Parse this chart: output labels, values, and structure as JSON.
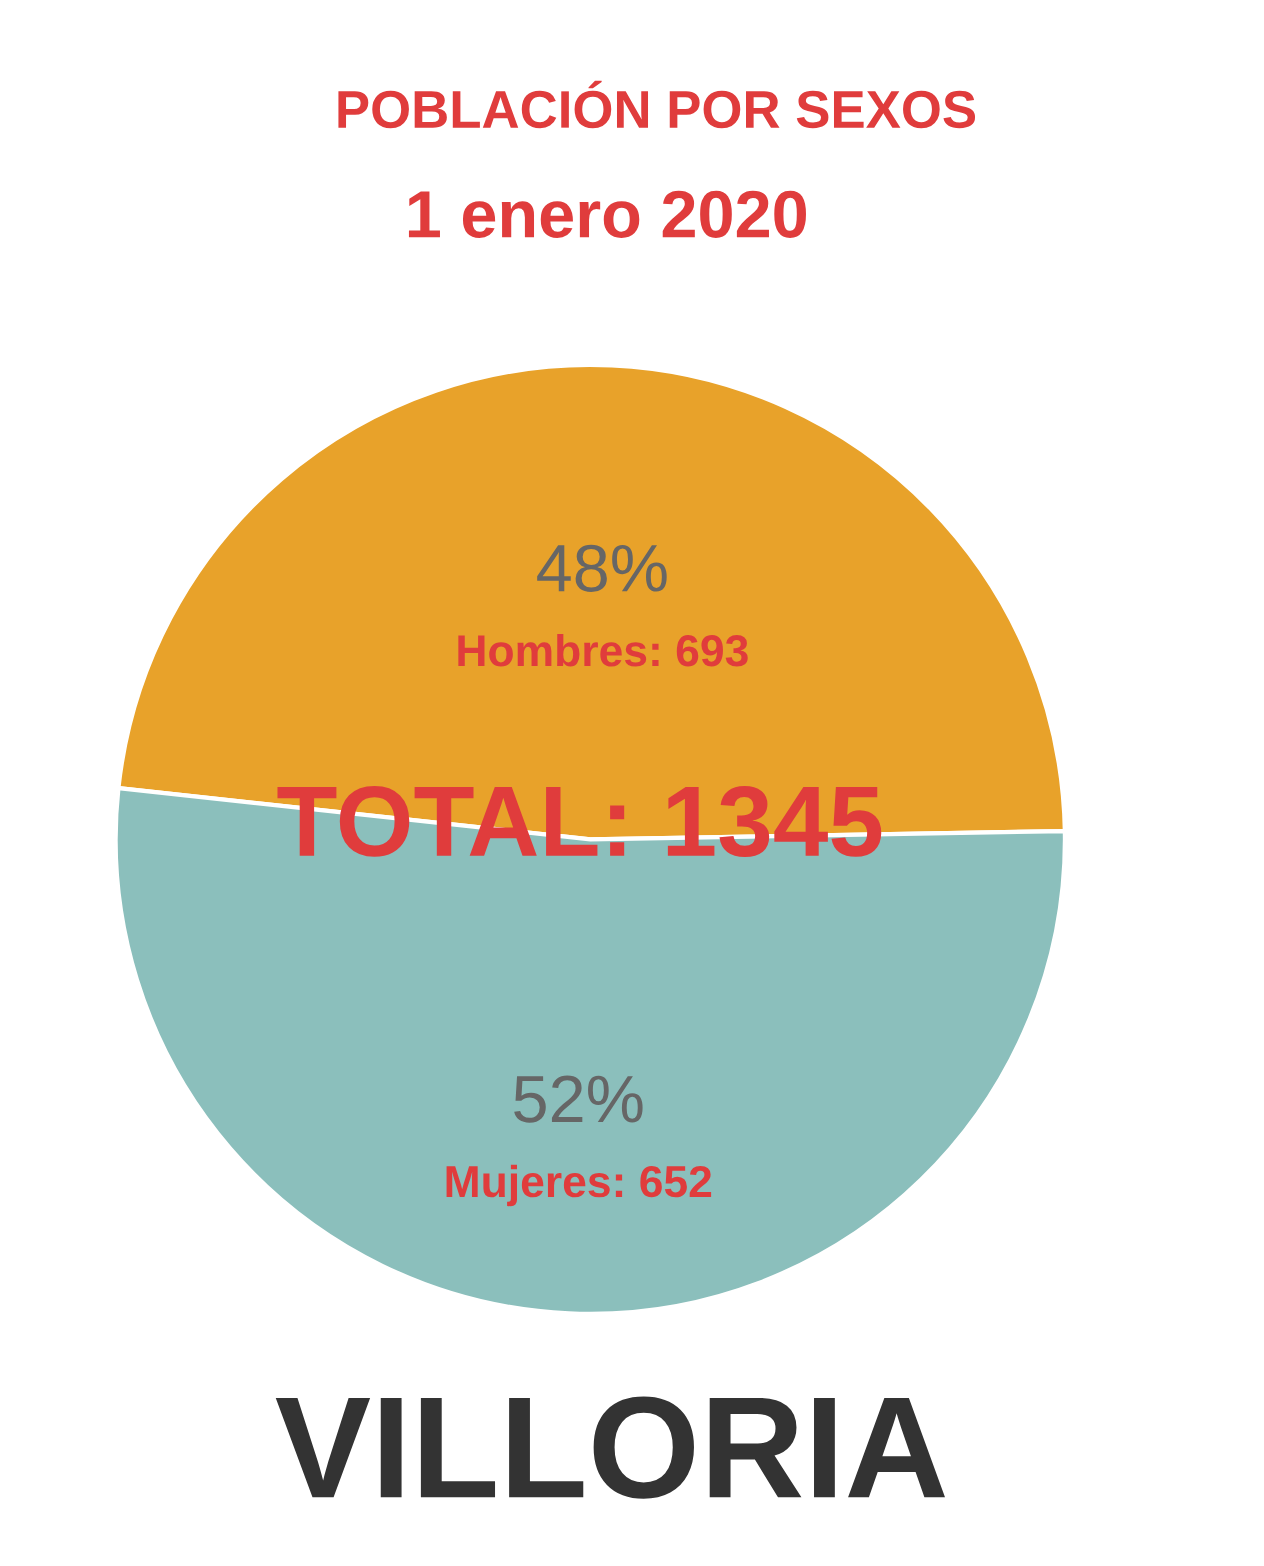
{
  "chart_data": {
    "type": "pie",
    "title": "POBLACIÓN POR SEXOS",
    "subtitle": "1 enero 2020",
    "categories": [
      "Hombres: 693",
      "Mujeres: 652"
    ],
    "values": [
      48,
      52
    ],
    "value_labels": [
      "48%",
      "52%"
    ],
    "colors": [
      "#e8a22a",
      "#8bbfbc"
    ],
    "annotations": [
      "TOTAL: 1345",
      "VILLORIA"
    ]
  }
}
